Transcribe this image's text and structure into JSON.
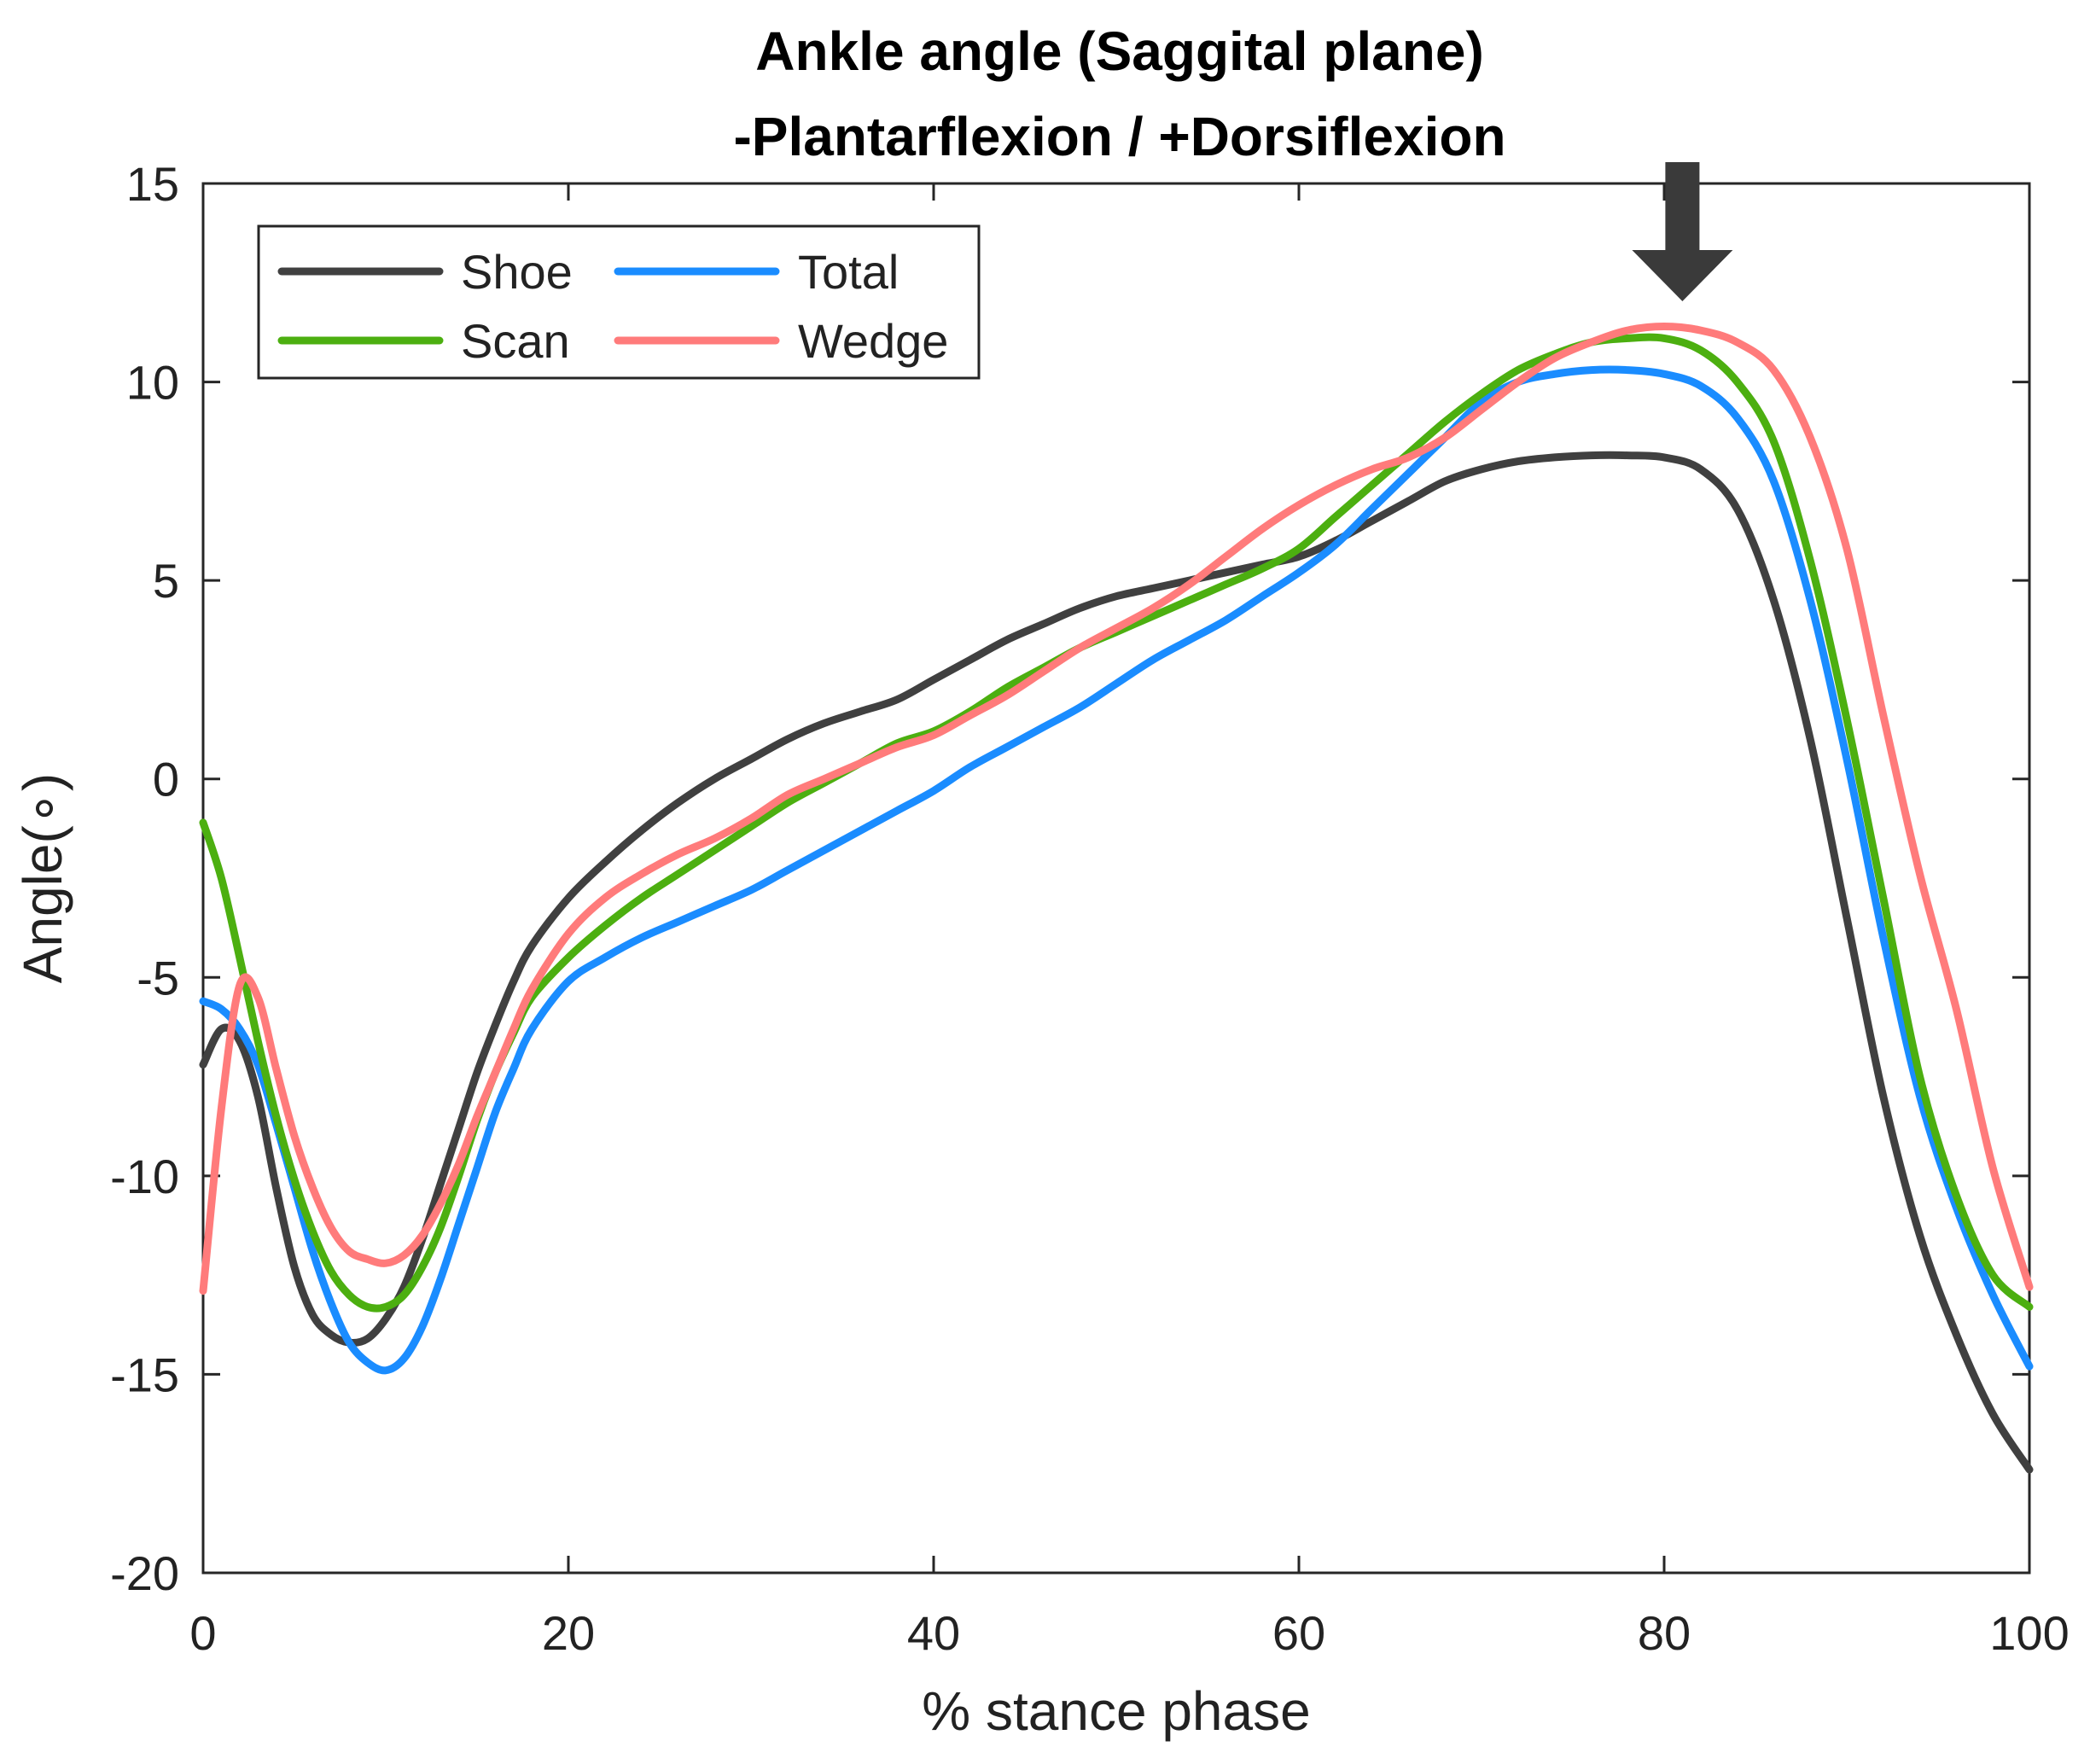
{
  "chart_data": {
    "type": "line",
    "title_line1": "Ankle angle (Saggital plane)",
    "title_line2": "-Plantarflexion / +Dorsiflexion",
    "xlabel": "% stance phase",
    "ylabel": "Angle(∘)",
    "xlim": [
      0,
      100
    ],
    "ylim": [
      -20,
      15
    ],
    "xticks": [
      0,
      20,
      40,
      60,
      80,
      100
    ],
    "yticks": [
      15,
      10,
      5,
      0,
      -5,
      -10,
      -15,
      -20
    ],
    "legend_position": "top-left",
    "annotation": "down-arrow at x=81",
    "annotation_x": 81,
    "series": [
      {
        "name": "Shoe",
        "color": "#404040",
        "x": [
          0,
          1,
          2,
          3,
          4,
          5,
          6,
          7,
          8,
          9,
          10,
          11,
          12,
          13,
          14,
          15,
          16,
          17,
          18,
          20,
          22,
          24,
          26,
          28,
          30,
          32,
          34,
          36,
          38,
          40,
          42,
          44,
          46,
          48,
          50,
          52,
          54,
          56,
          58,
          60,
          62,
          64,
          66,
          68,
          70,
          72,
          74,
          76,
          78,
          80,
          82,
          84,
          86,
          88,
          90,
          92,
          94,
          96,
          98,
          100
        ],
        "values": [
          -7.2,
          -6.3,
          -6.6,
          -8.0,
          -10.3,
          -12.3,
          -13.5,
          -14.0,
          -14.2,
          -14.1,
          -13.6,
          -12.8,
          -11.6,
          -10.2,
          -8.8,
          -7.4,
          -6.2,
          -5.1,
          -4.2,
          -3.0,
          -2.1,
          -1.3,
          -0.6,
          0.0,
          0.5,
          1.0,
          1.4,
          1.7,
          2.0,
          2.5,
          3.0,
          3.5,
          3.9,
          4.3,
          4.6,
          4.8,
          5.0,
          5.2,
          5.4,
          5.6,
          6.0,
          6.5,
          7.0,
          7.5,
          7.8,
          8.0,
          8.1,
          8.15,
          8.15,
          8.1,
          7.8,
          6.8,
          4.5,
          1.0,
          -3.5,
          -8.0,
          -11.5,
          -14.0,
          -16.0,
          -17.4
        ]
      },
      {
        "name": "Total",
        "color": "#1a8cff",
        "x": [
          0,
          1,
          2,
          3,
          4,
          5,
          6,
          7,
          8,
          9,
          10,
          11,
          12,
          13,
          14,
          15,
          16,
          17,
          18,
          20,
          22,
          24,
          26,
          28,
          30,
          32,
          34,
          36,
          38,
          40,
          42,
          44,
          46,
          48,
          50,
          52,
          54,
          56,
          58,
          60,
          62,
          64,
          66,
          68,
          70,
          72,
          74,
          76,
          78,
          80,
          82,
          84,
          86,
          88,
          90,
          92,
          94,
          96,
          98,
          100
        ],
        "values": [
          -5.6,
          -5.8,
          -6.3,
          -7.2,
          -8.7,
          -10.3,
          -11.9,
          -13.2,
          -14.2,
          -14.7,
          -14.9,
          -14.6,
          -13.8,
          -12.6,
          -11.2,
          -9.8,
          -8.4,
          -7.3,
          -6.3,
          -5.1,
          -4.5,
          -4.0,
          -3.6,
          -3.2,
          -2.8,
          -2.3,
          -1.8,
          -1.3,
          -0.8,
          -0.3,
          0.3,
          0.8,
          1.3,
          1.8,
          2.4,
          3.0,
          3.5,
          4.0,
          4.6,
          5.2,
          5.9,
          6.8,
          7.7,
          8.6,
          9.5,
          10.0,
          10.2,
          10.3,
          10.3,
          10.2,
          9.9,
          9.1,
          7.5,
          4.5,
          0.5,
          -4.0,
          -8.0,
          -10.8,
          -13.0,
          -14.8
        ]
      },
      {
        "name": "Scan",
        "color": "#4caf10",
        "x": [
          0,
          1,
          2,
          3,
          4,
          5,
          6,
          7,
          8,
          9,
          10,
          11,
          12,
          13,
          14,
          15,
          16,
          17,
          18,
          20,
          22,
          24,
          26,
          28,
          30,
          32,
          34,
          36,
          38,
          40,
          42,
          44,
          46,
          48,
          50,
          52,
          54,
          56,
          58,
          60,
          62,
          64,
          66,
          68,
          70,
          72,
          74,
          76,
          78,
          80,
          82,
          84,
          86,
          88,
          90,
          92,
          94,
          96,
          98,
          100
        ],
        "values": [
          -1.1,
          -2.5,
          -4.5,
          -6.6,
          -8.5,
          -10.1,
          -11.4,
          -12.4,
          -13.0,
          -13.3,
          -13.3,
          -13.0,
          -12.3,
          -11.3,
          -10.0,
          -8.6,
          -7.4,
          -6.4,
          -5.5,
          -4.5,
          -3.7,
          -3.0,
          -2.4,
          -1.8,
          -1.2,
          -0.6,
          -0.1,
          0.4,
          0.9,
          1.2,
          1.7,
          2.3,
          2.8,
          3.3,
          3.7,
          4.1,
          4.5,
          4.9,
          5.3,
          5.8,
          6.6,
          7.4,
          8.2,
          9.0,
          9.7,
          10.3,
          10.7,
          11.0,
          11.1,
          11.1,
          10.8,
          10.0,
          8.5,
          5.5,
          1.5,
          -3.0,
          -7.5,
          -10.5,
          -12.5,
          -13.3
        ]
      },
      {
        "name": "Wedge",
        "color": "#ff7b7b",
        "x": [
          0,
          1,
          2,
          3,
          4,
          5,
          6,
          7,
          8,
          9,
          10,
          11,
          12,
          13,
          14,
          15,
          16,
          17,
          18,
          20,
          22,
          24,
          26,
          28,
          30,
          32,
          34,
          36,
          38,
          40,
          42,
          44,
          46,
          48,
          50,
          52,
          54,
          56,
          58,
          60,
          62,
          64,
          66,
          68,
          70,
          72,
          74,
          76,
          78,
          80,
          82,
          84,
          86,
          88,
          90,
          92,
          94,
          96,
          98,
          100
        ],
        "values": [
          -12.9,
          -8.3,
          -5.2,
          -5.5,
          -7.3,
          -9.0,
          -10.3,
          -11.3,
          -11.9,
          -12.1,
          -12.2,
          -12.0,
          -11.5,
          -10.7,
          -9.7,
          -8.5,
          -7.4,
          -6.3,
          -5.3,
          -3.9,
          -3.0,
          -2.4,
          -1.9,
          -1.5,
          -1.0,
          -0.4,
          0.0,
          0.4,
          0.8,
          1.1,
          1.6,
          2.1,
          2.7,
          3.3,
          3.8,
          4.3,
          4.9,
          5.6,
          6.3,
          6.9,
          7.4,
          7.8,
          8.1,
          8.6,
          9.3,
          10.0,
          10.6,
          11.0,
          11.3,
          11.4,
          11.3,
          11.0,
          10.3,
          8.6,
          5.8,
          1.6,
          -2.4,
          -5.8,
          -9.8,
          -12.8
        ]
      }
    ]
  }
}
